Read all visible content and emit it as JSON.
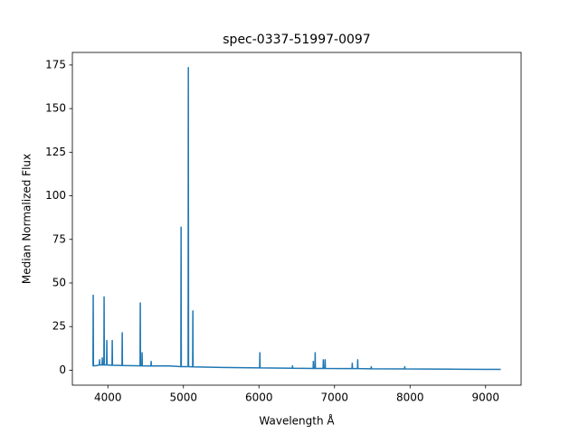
{
  "chart_data": {
    "type": "line",
    "title": "spec-0337-51997-0097",
    "x_label": "Wavelength Å",
    "y_label": "Median Normalized Flux",
    "x": [
      3800,
      3803,
      3806,
      3809,
      3850,
      3887,
      3890,
      3893,
      3923,
      3926,
      3929,
      3947,
      3950,
      3953,
      3983,
      3986,
      3989,
      4055,
      4058,
      4061,
      4187,
      4190,
      4193,
      4426,
      4429,
      4432,
      4450,
      4453,
      4456,
      4570,
      4573,
      4576,
      4800,
      4966,
      4969,
      4972,
      5062,
      5065,
      5068,
      5122,
      5125,
      5128,
      5500,
      6009,
      6012,
      6015,
      6441,
      6444,
      6447,
      6717,
      6720,
      6723,
      6741,
      6744,
      6747,
      6849,
      6852,
      6855,
      6873,
      6876,
      6879,
      7232,
      7235,
      7238,
      7304,
      7307,
      7310,
      7484,
      7487,
      7490,
      7927,
      7930,
      7933,
      8500,
      9000,
      9200
    ],
    "series": [
      {
        "name": "flux",
        "color": "#1f77b4",
        "values": [
          2.5,
          2.5,
          43,
          2.5,
          2.6,
          3,
          6,
          3,
          3,
          7,
          3,
          3,
          42,
          3,
          3,
          17,
          3,
          2.8,
          17,
          2.8,
          2.7,
          21.5,
          2.7,
          2.5,
          38.5,
          2.5,
          2.5,
          10,
          2.5,
          2.4,
          5,
          2.4,
          2.5,
          2,
          82,
          2,
          2,
          173.5,
          2,
          1.9,
          34,
          1.9,
          1.6,
          1.3,
          10,
          1.3,
          1.1,
          2.5,
          1.1,
          1,
          5,
          1,
          1,
          10,
          1,
          1,
          6,
          1,
          1,
          6,
          1,
          0.9,
          4,
          0.9,
          0.9,
          6,
          0.9,
          0.8,
          2,
          0.8,
          0.7,
          2,
          0.7,
          0.6,
          0.5,
          0.5
        ]
      }
    ],
    "xlim": [
      3530,
      9470
    ],
    "ylim": [
      -8.6,
      182.2
    ],
    "xticks": [
      4000,
      5000,
      6000,
      7000,
      8000,
      9000
    ],
    "yticks": [
      0,
      25,
      50,
      75,
      100,
      125,
      150,
      175
    ],
    "grid": false
  }
}
